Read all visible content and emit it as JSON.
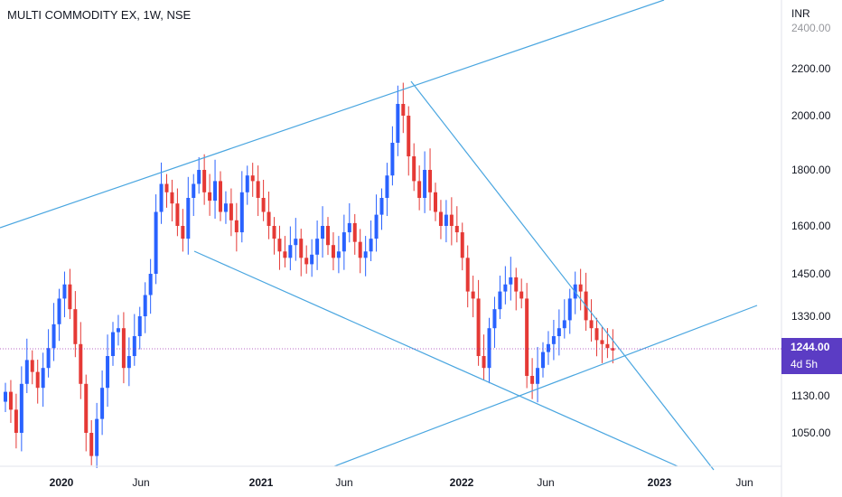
{
  "header": {
    "title": "MULTI COMMODITY EX, 1W, NSE",
    "currency": "INR"
  },
  "price_axis": {
    "ticks": [
      "2400.00",
      "2200.00",
      "2000.00",
      "1800.00",
      "1600.00",
      "1450.00",
      "1330.00",
      "1130.00",
      "1050.00"
    ],
    "last_price": "1244.00",
    "countdown": "4d 5h"
  },
  "time_axis": {
    "ticks": [
      "2020",
      "Jun",
      "2021",
      "Jun",
      "2022",
      "Jun",
      "2023",
      "Jun"
    ]
  },
  "colors": {
    "up": "#2962ff",
    "down": "#e53935",
    "trendline": "#4aa6e0",
    "badge": "#5b3cc4"
  },
  "chart_data": {
    "type": "candlestick",
    "series_type": "weekly-ohlc",
    "y_ticks": [
      2400,
      2200,
      2000,
      1800,
      1600,
      1450,
      1330,
      1130,
      1050
    ],
    "x_ticks": [
      "2020",
      "Jun",
      "2021",
      "Jun",
      "2022",
      "Jun",
      "2023",
      "Jun"
    ],
    "last_price": 1244,
    "approx_closes": [
      [
        1140,
        1100,
        1050,
        1160,
        1220,
        1190,
        1150,
        1200,
        1250,
        1310,
        1380,
        1420,
        1350,
        1260,
        1160,
        1050,
        1000,
        1080,
        1150,
        1230,
        1290,
        1300,
        1200,
        1230,
        1280,
        1330,
        1390,
        1450,
        1650,
        1750,
        1720,
        1680,
        1600,
        1560,
        1700,
        1750,
        1800,
        1720,
        1690,
        1760,
        1650,
        1680,
        1620,
        1580,
        1720,
        1780,
        1760,
        1700,
        1650,
        1600,
        1560,
        1520,
        1500,
        1540,
        1560,
        1500,
        1480,
        1510,
        1560,
        1600,
        1540,
        1500,
        1520,
        1580,
        1610,
        1550,
        1500,
        1520,
        1560,
        1640,
        1700,
        1780,
        1900,
        2050,
        2000,
        1850,
        1760,
        1700,
        1800,
        1720,
        1650,
        1600,
        1640,
        1600,
        1580,
        1500,
        1400,
        1380,
        1230,
        1200,
        1300,
        1350,
        1400,
        1420,
        1440,
        1400,
        1380,
        1180,
        1160,
        1200,
        1240,
        1260,
        1280,
        1300,
        1320,
        1380,
        1420,
        1400,
        1320,
        1300,
        1270,
        1260,
        1250,
        1244
      ]
    ],
    "trendlines": [
      {
        "from": [
          "2019-09",
          1600
        ],
        "to": [
          "2022-08",
          2600
        ]
      },
      {
        "from": [
          "2021-09",
          2140
        ],
        "to": [
          "2023-05",
          1000
        ]
      },
      {
        "from": [
          "2020-07",
          1520
        ],
        "to": [
          "2023-01",
          980
        ]
      },
      {
        "from": [
          "2021-06",
          980
        ],
        "to": [
          "2023-06",
          1340
        ]
      }
    ],
    "ylabel": "INR"
  }
}
